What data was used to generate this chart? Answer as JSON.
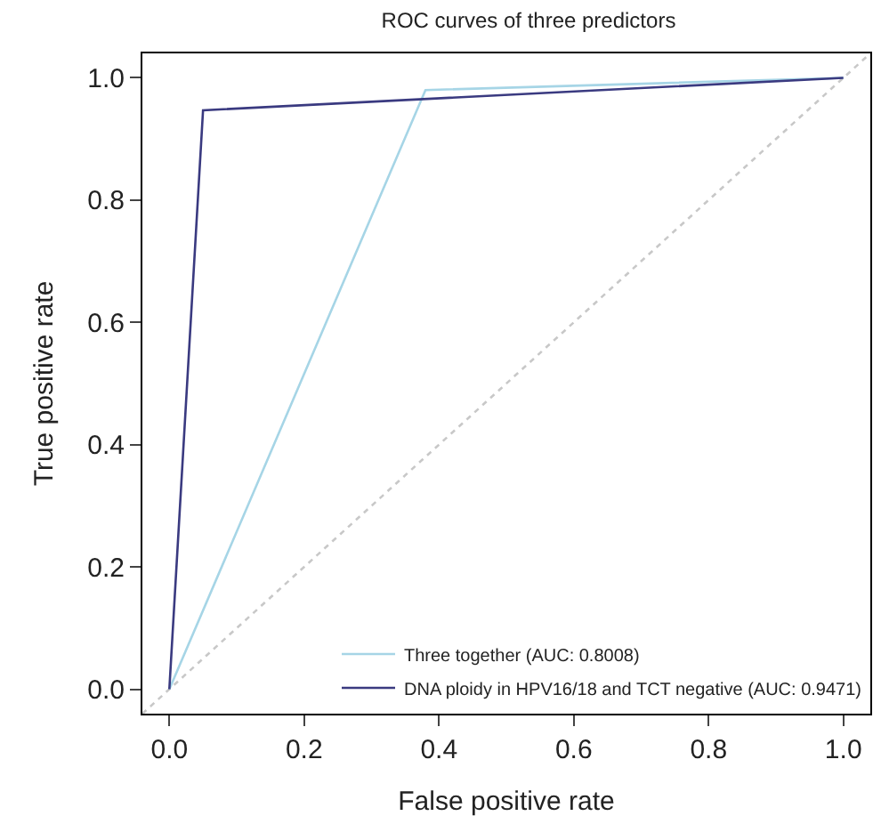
{
  "chart_data": {
    "type": "line",
    "title": "ROC curves of three predictors",
    "xlabel": "False positive rate",
    "ylabel": "True positive rate",
    "xlim": [
      -0.04,
      1.04
    ],
    "ylim": [
      -0.04,
      1.04
    ],
    "xticks": [
      {
        "value": 0,
        "label": "0.0"
      },
      0.2,
      0.4,
      0.6,
      0.8,
      {
        "value": 1,
        "label": "1.0"
      }
    ],
    "yticks": [
      {
        "value": 0,
        "label": "0.0"
      },
      0.2,
      0.4,
      0.6,
      0.8,
      {
        "value": 1,
        "label": "1.0"
      }
    ],
    "grid": false,
    "legend": "bottom right",
    "marker": "none",
    "series": [
      {
        "name": "Three together (AUC: 0.8008)",
        "color": "#a6d5e6",
        "x": [
          0,
          0.38,
          1
        ],
        "values": [
          0,
          0.98,
          1
        ]
      },
      {
        "name": "DNA ploidy in HPV16/18 and TCT negative (AUC: 0.9471)",
        "color": "#3a3a80",
        "x": [
          0,
          0.05,
          1
        ],
        "values": [
          0,
          0.947,
          1
        ]
      },
      {
        "color": "#c8c8c8",
        "line_style": "dotted",
        "x": [
          -0.04,
          1.04
        ],
        "values": [
          -0.04,
          1.04
        ]
      }
    ]
  }
}
